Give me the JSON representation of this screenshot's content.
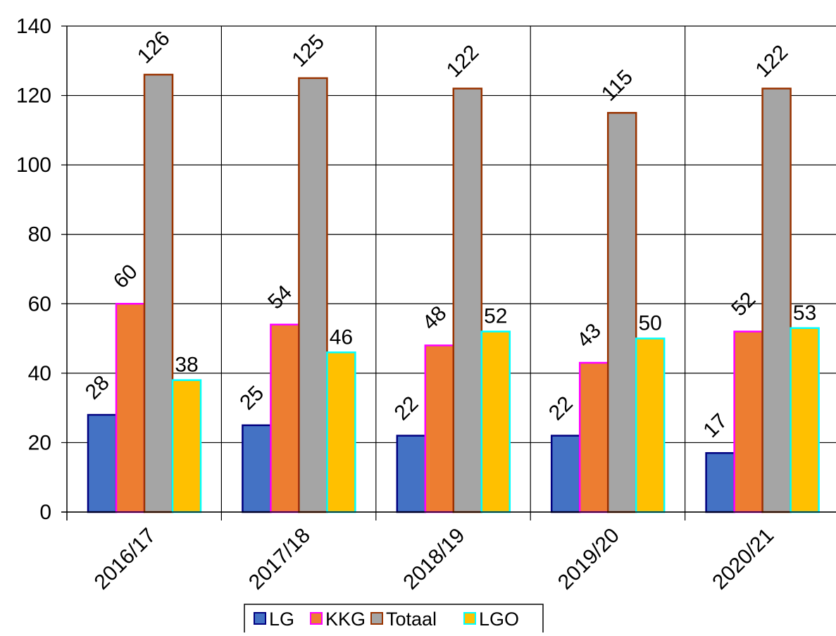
{
  "chart_data": {
    "type": "bar",
    "title": "",
    "xlabel": "",
    "ylabel": "",
    "categories": [
      "2016/17",
      "2017/18",
      "2018/19",
      "2019/20",
      "2020/21"
    ],
    "ylim": [
      0,
      140
    ],
    "yticks": [
      0,
      20,
      40,
      60,
      80,
      100,
      120,
      140
    ],
    "grid": "horizontal and vertical",
    "legend_position": "bottom-center",
    "series": [
      {
        "name": "LG",
        "values": [
          28,
          25,
          22,
          22,
          17
        ],
        "fill": "#4472C4",
        "stroke": "#000080"
      },
      {
        "name": "KKG",
        "values": [
          60,
          54,
          48,
          43,
          52
        ],
        "fill": "#ED7D31",
        "stroke": "#FF00FF"
      },
      {
        "name": "Totaal",
        "values": [
          126,
          125,
          122,
          115,
          122
        ],
        "fill": "#A5A5A5",
        "stroke": "#993300"
      },
      {
        "name": "LGO",
        "values": [
          38,
          46,
          52,
          50,
          53
        ],
        "fill": "#FFC000",
        "stroke": "#00FFFF"
      }
    ],
    "data_labels": "rotated for LG, KKG, Totaal; horizontal for LGO"
  }
}
